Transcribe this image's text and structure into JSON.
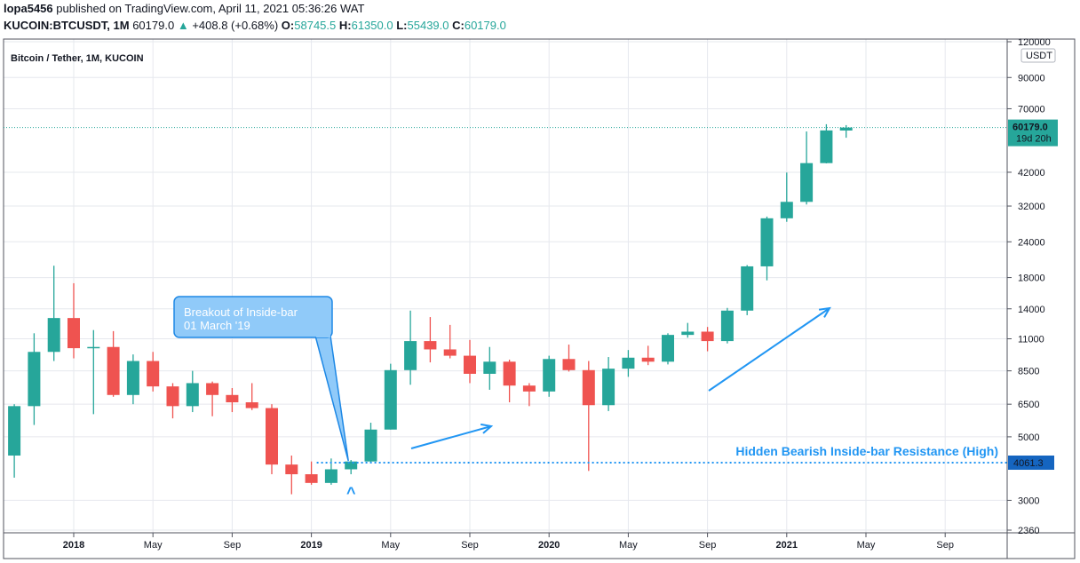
{
  "header": {
    "publisher": "lopa5456",
    "published_text": "published on TradingView.com, April 11, 2021 05:36:26 WAT",
    "symbol": "KUCOIN:BTCUSDT, 1M",
    "last": "60179.0",
    "change": "+408.8 (+0.68%)",
    "open_label": "O:",
    "open": "58745.5",
    "high_label": "H:",
    "high": "61350.0",
    "low_label": "L:",
    "low": "55439.0",
    "close_label": "C:",
    "close": "60179.0"
  },
  "chart_data": {
    "type": "candlestick",
    "title": "Bitcoin / Tether, 1M, KUCOIN",
    "currency": "USDT",
    "y_scale": "log",
    "ylim": [
      2360,
      120000
    ],
    "y_ticks": [
      "120000",
      "90000",
      "70000",
      "60179.0",
      "42000",
      "32000",
      "24000",
      "18000",
      "14000",
      "11000",
      "8500",
      "6500",
      "5000",
      "4061.3",
      "3000",
      "2360"
    ],
    "y_tick_values": [
      120000,
      90000,
      70000,
      42000,
      32000,
      24000,
      18000,
      14000,
      11000,
      8500,
      6500,
      5000,
      3000,
      2360
    ],
    "x_ticks": [
      "2018",
      "May",
      "Sep",
      "2019",
      "May",
      "Sep",
      "2020",
      "May",
      "Sep",
      "2021",
      "May",
      "Sep"
    ],
    "x_tick_dates": [
      "2018-01",
      "2018-05",
      "2018-09",
      "2019-01",
      "2019-05",
      "2019-09",
      "2020-01",
      "2020-05",
      "2020-09",
      "2021-01",
      "2021-05",
      "2021-09"
    ],
    "grid": true,
    "up_color": "#26a69a",
    "down_color": "#ef5350",
    "candles": [
      {
        "date": "2017-10",
        "o": 4300,
        "h": 6500,
        "l": 3600,
        "c": 6400
      },
      {
        "date": "2017-11",
        "o": 6400,
        "h": 11500,
        "l": 5500,
        "c": 9900
      },
      {
        "date": "2017-12",
        "o": 9900,
        "h": 19800,
        "l": 9200,
        "c": 13000
      },
      {
        "date": "2018-01",
        "o": 13000,
        "h": 17200,
        "l": 9400,
        "c": 10200
      },
      {
        "date": "2018-02",
        "o": 10200,
        "h": 11800,
        "l": 6000,
        "c": 10300
      },
      {
        "date": "2018-03",
        "o": 10300,
        "h": 11700,
        "l": 6900,
        "c": 7000
      },
      {
        "date": "2018-04",
        "o": 7000,
        "h": 9700,
        "l": 6500,
        "c": 9200
      },
      {
        "date": "2018-05",
        "o": 9200,
        "h": 9900,
        "l": 7200,
        "c": 7500
      },
      {
        "date": "2018-06",
        "o": 7500,
        "h": 7700,
        "l": 5800,
        "c": 6400
      },
      {
        "date": "2018-07",
        "o": 6400,
        "h": 8500,
        "l": 6100,
        "c": 7700
      },
      {
        "date": "2018-08",
        "o": 7700,
        "h": 7800,
        "l": 5900,
        "c": 7000
      },
      {
        "date": "2018-09",
        "o": 7000,
        "h": 7400,
        "l": 6100,
        "c": 6600
      },
      {
        "date": "2018-10",
        "o": 6600,
        "h": 7700,
        "l": 6200,
        "c": 6300
      },
      {
        "date": "2018-11",
        "o": 6300,
        "h": 6500,
        "l": 3700,
        "c": 4000
      },
      {
        "date": "2018-12",
        "o": 4000,
        "h": 4300,
        "l": 3150,
        "c": 3700
      },
      {
        "date": "2019-01",
        "o": 3700,
        "h": 4100,
        "l": 3400,
        "c": 3450
      },
      {
        "date": "2019-02",
        "o": 3450,
        "h": 4200,
        "l": 3400,
        "c": 3850
      },
      {
        "date": "2019-03",
        "o": 3850,
        "h": 4150,
        "l": 3700,
        "c": 4100
      },
      {
        "date": "2019-04",
        "o": 4100,
        "h": 5600,
        "l": 4050,
        "c": 5300
      },
      {
        "date": "2019-05",
        "o": 5300,
        "h": 9000,
        "l": 5300,
        "c": 8550
      },
      {
        "date": "2019-06",
        "o": 8550,
        "h": 13800,
        "l": 7600,
        "c": 10800
      },
      {
        "date": "2019-07",
        "o": 10800,
        "h": 13100,
        "l": 9100,
        "c": 10100
      },
      {
        "date": "2019-08",
        "o": 10100,
        "h": 12300,
        "l": 9400,
        "c": 9600
      },
      {
        "date": "2019-09",
        "o": 9600,
        "h": 10900,
        "l": 7700,
        "c": 8300
      },
      {
        "date": "2019-10",
        "o": 8300,
        "h": 10300,
        "l": 7300,
        "c": 9150
      },
      {
        "date": "2019-11",
        "o": 9150,
        "h": 9300,
        "l": 6600,
        "c": 7550
      },
      {
        "date": "2019-12",
        "o": 7550,
        "h": 7700,
        "l": 6400,
        "c": 7200
      },
      {
        "date": "2020-01",
        "o": 7200,
        "h": 9600,
        "l": 6900,
        "c": 9350
      },
      {
        "date": "2020-02",
        "o": 9350,
        "h": 10500,
        "l": 8450,
        "c": 8550
      },
      {
        "date": "2020-03",
        "o": 8550,
        "h": 9200,
        "l": 3800,
        "c": 6450
      },
      {
        "date": "2020-04",
        "o": 6450,
        "h": 9500,
        "l": 6150,
        "c": 8650
      },
      {
        "date": "2020-05",
        "o": 8650,
        "h": 10050,
        "l": 8100,
        "c": 9450
      },
      {
        "date": "2020-06",
        "o": 9450,
        "h": 10400,
        "l": 8900,
        "c": 9150
      },
      {
        "date": "2020-07",
        "o": 9150,
        "h": 11500,
        "l": 8950,
        "c": 11350
      },
      {
        "date": "2020-08",
        "o": 11350,
        "h": 12500,
        "l": 11100,
        "c": 11650
      },
      {
        "date": "2020-09",
        "o": 11650,
        "h": 12100,
        "l": 9950,
        "c": 10800
      },
      {
        "date": "2020-10",
        "o": 10800,
        "h": 14100,
        "l": 10600,
        "c": 13800
      },
      {
        "date": "2020-11",
        "o": 13800,
        "h": 19900,
        "l": 13300,
        "c": 19700
      },
      {
        "date": "2020-12",
        "o": 19700,
        "h": 29400,
        "l": 17600,
        "c": 29000
      },
      {
        "date": "2021-01",
        "o": 29000,
        "h": 41900,
        "l": 28200,
        "c": 33100
      },
      {
        "date": "2021-02",
        "o": 33100,
        "h": 58300,
        "l": 32400,
        "c": 45200
      },
      {
        "date": "2021-03",
        "o": 45200,
        "h": 61800,
        "l": 45100,
        "c": 58800
      },
      {
        "date": "2021-04",
        "o": 58745.5,
        "h": 61350.0,
        "l": 55439.0,
        "c": 60179.0
      }
    ],
    "last_price_label": "60179.0",
    "countdown_label": "19d 20h",
    "resistance": {
      "value": 4061.3,
      "label": "4061.3",
      "text": "Hidden Bearish Inside-bar Resistance (High)"
    },
    "annotations": {
      "callout_line1": "Breakout of Inside-bar",
      "callout_line2": "01 March '19",
      "breakout_marker": "^"
    }
  },
  "colors": {
    "up": "#26a69a",
    "down": "#ef5350",
    "accent": "#2196f3",
    "callout_fill": "#90caf9",
    "callout_border": "#1e88e5",
    "resistance_label_bg": "#1565c0"
  }
}
